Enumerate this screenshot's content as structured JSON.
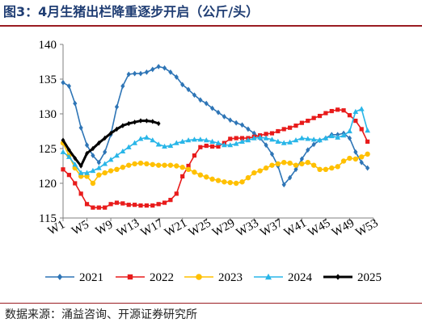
{
  "title": "图3：4月生猪出栏降重逐步开启（公斤/头）",
  "source": "数据来源：涌益咨询、开源证券研究所",
  "chart_data": {
    "type": "line",
    "xlabel": "",
    "ylabel": "",
    "ylim": [
      115,
      140
    ],
    "yticks": [
      115,
      120,
      125,
      130,
      135,
      140
    ],
    "xlim": [
      1,
      53
    ],
    "xticks": [
      1,
      5,
      9,
      13,
      17,
      21,
      25,
      29,
      33,
      37,
      41,
      45,
      49,
      53
    ],
    "xtick_labels": [
      "W1",
      "W5",
      "W9",
      "W13",
      "W17",
      "W21",
      "W25",
      "W29",
      "W33",
      "W37",
      "W41",
      "W45",
      "W49",
      "W53"
    ],
    "grid": false,
    "legend": "bottom",
    "series": [
      {
        "name": "2021",
        "color": "#2e75b6",
        "marker": "diamond",
        "x": [
          1,
          2,
          3,
          4,
          5,
          6,
          7,
          8,
          9,
          10,
          11,
          12,
          13,
          14,
          15,
          16,
          17,
          18,
          19,
          20,
          21,
          22,
          23,
          24,
          25,
          26,
          27,
          28,
          29,
          30,
          31,
          32,
          33,
          34,
          35,
          36,
          37,
          38,
          39,
          40,
          41,
          42,
          43,
          44,
          45,
          46,
          47,
          48,
          49,
          50,
          51,
          52
        ],
        "y": [
          134.5,
          134.0,
          131.5,
          128.0,
          125.5,
          124.0,
          123.0,
          124.5,
          127.0,
          131.0,
          134.0,
          135.7,
          135.8,
          135.8,
          136.0,
          136.4,
          136.8,
          136.6,
          136.0,
          135.3,
          134.2,
          133.5,
          132.7,
          132.0,
          131.5,
          130.8,
          130.2,
          129.6,
          129.1,
          128.7,
          128.4,
          127.8,
          127.2,
          126.5,
          125.5,
          124.2,
          122.5,
          119.8,
          120.8,
          122.0,
          123.5,
          124.8,
          125.6,
          126.2,
          126.5,
          127.0,
          127.0,
          127.2,
          126.5,
          124.5,
          123.0,
          122.2
        ]
      },
      {
        "name": "2022",
        "color": "#e81b1b",
        "marker": "square",
        "x": [
          1,
          2,
          3,
          4,
          5,
          6,
          7,
          8,
          9,
          10,
          11,
          12,
          13,
          14,
          15,
          16,
          17,
          18,
          19,
          20,
          21,
          22,
          23,
          24,
          25,
          26,
          27,
          28,
          29,
          30,
          31,
          32,
          33,
          34,
          35,
          36,
          37,
          38,
          39,
          40,
          41,
          42,
          43,
          44,
          45,
          46,
          47,
          48,
          49,
          50,
          51,
          52
        ],
        "y": [
          122.0,
          121.2,
          120.0,
          118.5,
          117.0,
          116.5,
          116.5,
          116.5,
          117.0,
          117.2,
          117.1,
          116.9,
          116.9,
          116.8,
          116.8,
          116.8,
          117.0,
          117.2,
          117.6,
          118.5,
          121.0,
          122.5,
          124.0,
          125.2,
          125.4,
          125.3,
          125.3,
          125.8,
          126.4,
          126.5,
          126.5,
          126.5,
          126.7,
          126.9,
          127.1,
          127.2,
          127.5,
          127.8,
          128.0,
          128.3,
          128.7,
          129.0,
          129.4,
          129.7,
          130.1,
          130.4,
          130.6,
          130.5,
          129.8,
          129.0,
          127.8,
          126.0
        ]
      },
      {
        "name": "2023",
        "color": "#ffc000",
        "marker": "circle",
        "x": [
          1,
          2,
          3,
          4,
          5,
          6,
          7,
          8,
          9,
          10,
          11,
          12,
          13,
          14,
          15,
          16,
          17,
          18,
          19,
          20,
          21,
          22,
          23,
          24,
          25,
          26,
          27,
          28,
          29,
          30,
          31,
          32,
          33,
          34,
          35,
          36,
          37,
          38,
          39,
          40,
          41,
          42,
          43,
          44,
          45,
          46,
          47,
          48,
          49,
          50,
          51,
          52
        ],
        "y": [
          125.8,
          124.0,
          122.2,
          121.0,
          121.0,
          120.0,
          121.2,
          121.5,
          121.8,
          122.0,
          122.3,
          122.6,
          122.8,
          122.9,
          122.8,
          122.7,
          122.6,
          122.6,
          122.6,
          122.5,
          122.3,
          122.0,
          121.6,
          121.2,
          120.9,
          120.6,
          120.4,
          120.2,
          120.1,
          120.0,
          120.2,
          120.8,
          121.5,
          121.8,
          122.2,
          122.6,
          122.8,
          123.0,
          122.9,
          122.6,
          122.8,
          123.0,
          122.6,
          122.0,
          122.0,
          122.2,
          122.4,
          123.2,
          123.6,
          123.5,
          123.8,
          124.2
        ]
      },
      {
        "name": "2024",
        "color": "#29b6e8",
        "marker": "triangle",
        "x": [
          1,
          2,
          3,
          4,
          5,
          6,
          7,
          8,
          9,
          10,
          11,
          12,
          13,
          14,
          15,
          16,
          17,
          18,
          19,
          20,
          21,
          22,
          23,
          24,
          25,
          26,
          27,
          28,
          29,
          30,
          31,
          32,
          33,
          34,
          35,
          36,
          37,
          38,
          39,
          40,
          41,
          42,
          43,
          44,
          45,
          46,
          47,
          48,
          49,
          50,
          51,
          52
        ],
        "y": [
          124.5,
          123.8,
          122.7,
          121.5,
          121.5,
          121.8,
          122.2,
          122.8,
          123.4,
          124.0,
          124.6,
          125.2,
          125.8,
          126.4,
          126.6,
          126.2,
          125.6,
          125.3,
          125.4,
          125.8,
          126.0,
          126.2,
          126.3,
          126.3,
          126.2,
          126.0,
          125.8,
          125.5,
          125.5,
          125.7,
          126.0,
          126.2,
          126.5,
          126.6,
          126.5,
          126.3,
          126.0,
          125.8,
          125.9,
          126.2,
          126.5,
          126.4,
          126.3,
          126.2,
          126.5,
          126.8,
          126.6,
          126.9,
          127.5,
          130.3,
          130.7,
          127.6
        ]
      },
      {
        "name": "2025",
        "color": "#000000",
        "marker": "diamond",
        "x": [
          1,
          2,
          3,
          4,
          5,
          6,
          7,
          8,
          9,
          10,
          11,
          12,
          13,
          14,
          15,
          16,
          17
        ],
        "y": [
          126.2,
          124.8,
          123.6,
          122.5,
          124.3,
          125.0,
          125.8,
          126.5,
          127.2,
          127.8,
          128.3,
          128.6,
          128.8,
          129.0,
          129.0,
          128.9,
          128.6
        ]
      }
    ]
  }
}
